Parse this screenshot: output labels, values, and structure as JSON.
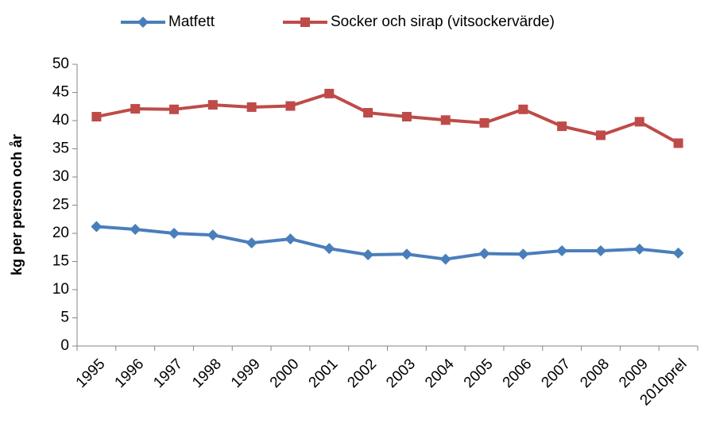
{
  "chart_data": {
    "type": "line",
    "y_label": "kg per person och år",
    "categories": [
      "1995",
      "1996",
      "1997",
      "1998",
      "1999",
      "2000",
      "2001",
      "2002",
      "2003",
      "2004",
      "2005",
      "2006",
      "2007",
      "2008",
      "2009",
      "2010prel"
    ],
    "series": [
      {
        "name": "Matfett",
        "color": "#4a7ebb",
        "marker": "diamond",
        "values": [
          21.2,
          20.7,
          20.0,
          19.7,
          18.3,
          19.0,
          17.3,
          16.2,
          16.3,
          15.4,
          16.4,
          16.3,
          16.9,
          16.9,
          17.2,
          16.5
        ]
      },
      {
        "name": "Socker och sirap (vitsockervärde)",
        "color": "#be4b48",
        "marker": "square",
        "values": [
          40.7,
          42.1,
          42.0,
          42.8,
          42.4,
          42.6,
          44.8,
          41.4,
          40.7,
          40.1,
          39.6,
          42.0,
          39.0,
          37.4,
          39.8,
          36.0
        ]
      }
    ],
    "ylim": [
      0,
      50
    ],
    "yticks": [
      0,
      5,
      10,
      15,
      20,
      25,
      30,
      35,
      40,
      45,
      50
    ],
    "legend": "top"
  }
}
